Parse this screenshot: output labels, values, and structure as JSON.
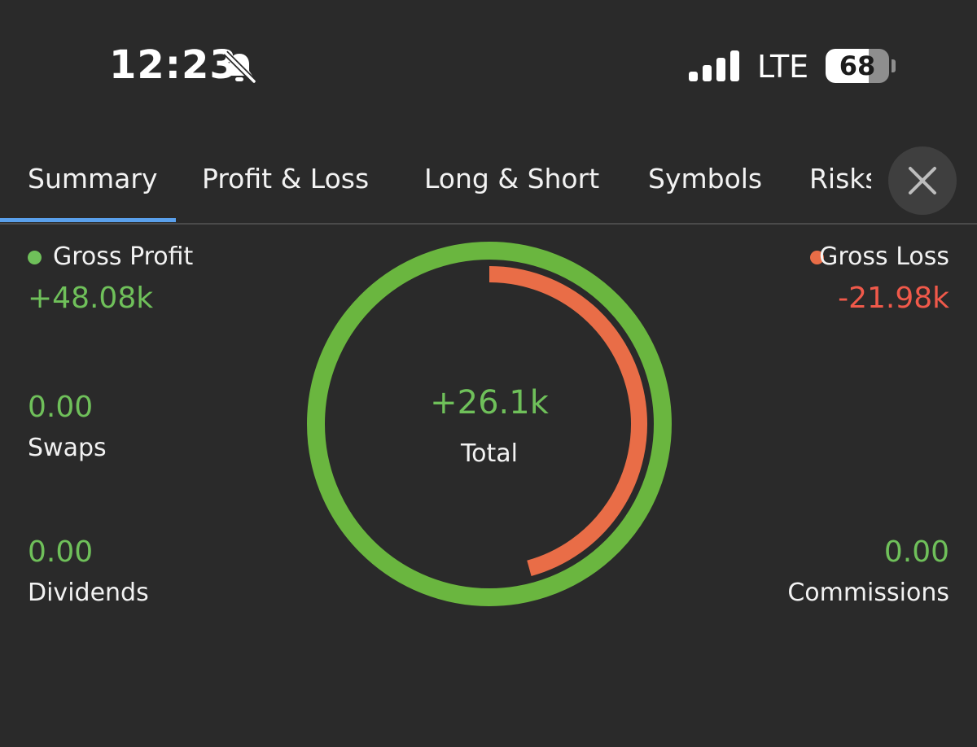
{
  "status_bar": {
    "time": "12:23",
    "bell_icon": "bell-slash-icon",
    "signal_icon": "cellular-signal-icon",
    "network": "LTE",
    "battery_level": "68",
    "battery_fraction": 0.68
  },
  "tabs": [
    {
      "label": "Summary",
      "active": true
    },
    {
      "label": "Profit & Loss",
      "active": false
    },
    {
      "label": "Long & Short",
      "active": false
    },
    {
      "label": "Symbols",
      "active": false
    },
    {
      "label": "Risks",
      "active": false
    }
  ],
  "close_icon": "close-icon",
  "summary": {
    "gross_profit": {
      "label": "Gross Profit",
      "value": "+48.08k",
      "amount": 48.08
    },
    "gross_loss": {
      "label": "Gross Loss",
      "value": "-21.98k",
      "amount": 21.98
    },
    "swaps": {
      "label": "Swaps",
      "value": "0.00"
    },
    "dividends": {
      "label": "Dividends",
      "value": "0.00"
    },
    "commissions": {
      "label": "Commissions",
      "value": "0.00"
    },
    "total": {
      "label": "Total",
      "value": "+26.1k"
    }
  },
  "colors": {
    "background": "#2a2a2a",
    "profit": "#6fc05a",
    "profit_ring": "#6ab63f",
    "loss_dot": "#e96d47",
    "loss_text": "#f0594a",
    "loss_ring": "#e96d47",
    "tab_indicator": "#5aa0ec"
  }
}
